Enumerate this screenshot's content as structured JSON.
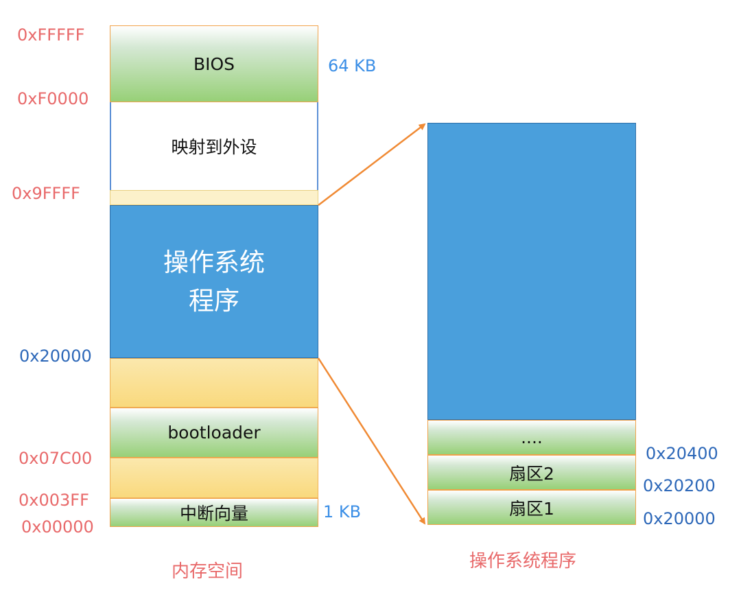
{
  "memory": {
    "blocks": {
      "bios": "BIOS",
      "peripheral": "映射到外设",
      "os": "操作系统\n程序",
      "bootloader": "bootloader",
      "ivt": "中断向量"
    },
    "addresses": {
      "a_fffff": "0xFFFFF",
      "a_f0000": "0xF0000",
      "a_9ffff": "0x9FFFF",
      "a_20000": "0x20000",
      "a_07c00": "0x07C00",
      "a_003ff": "0x003FF",
      "a_00000": "0x00000"
    },
    "sizes": {
      "bios": "64 KB",
      "ivt": "1 KB"
    },
    "caption": "内存空间"
  },
  "program": {
    "blocks": {
      "more": "....",
      "sector2": "扇区2",
      "sector1": "扇区1"
    },
    "addresses": {
      "a_20400": "0x20400",
      "a_20200": "0x20200",
      "a_20000": "0x20000"
    },
    "caption": "操作系统程序"
  },
  "colors": {
    "address_red": "#e8696a",
    "address_blue": "#2c67b8",
    "arrow": "#f08a34",
    "os_blue": "#4a9fdc"
  }
}
